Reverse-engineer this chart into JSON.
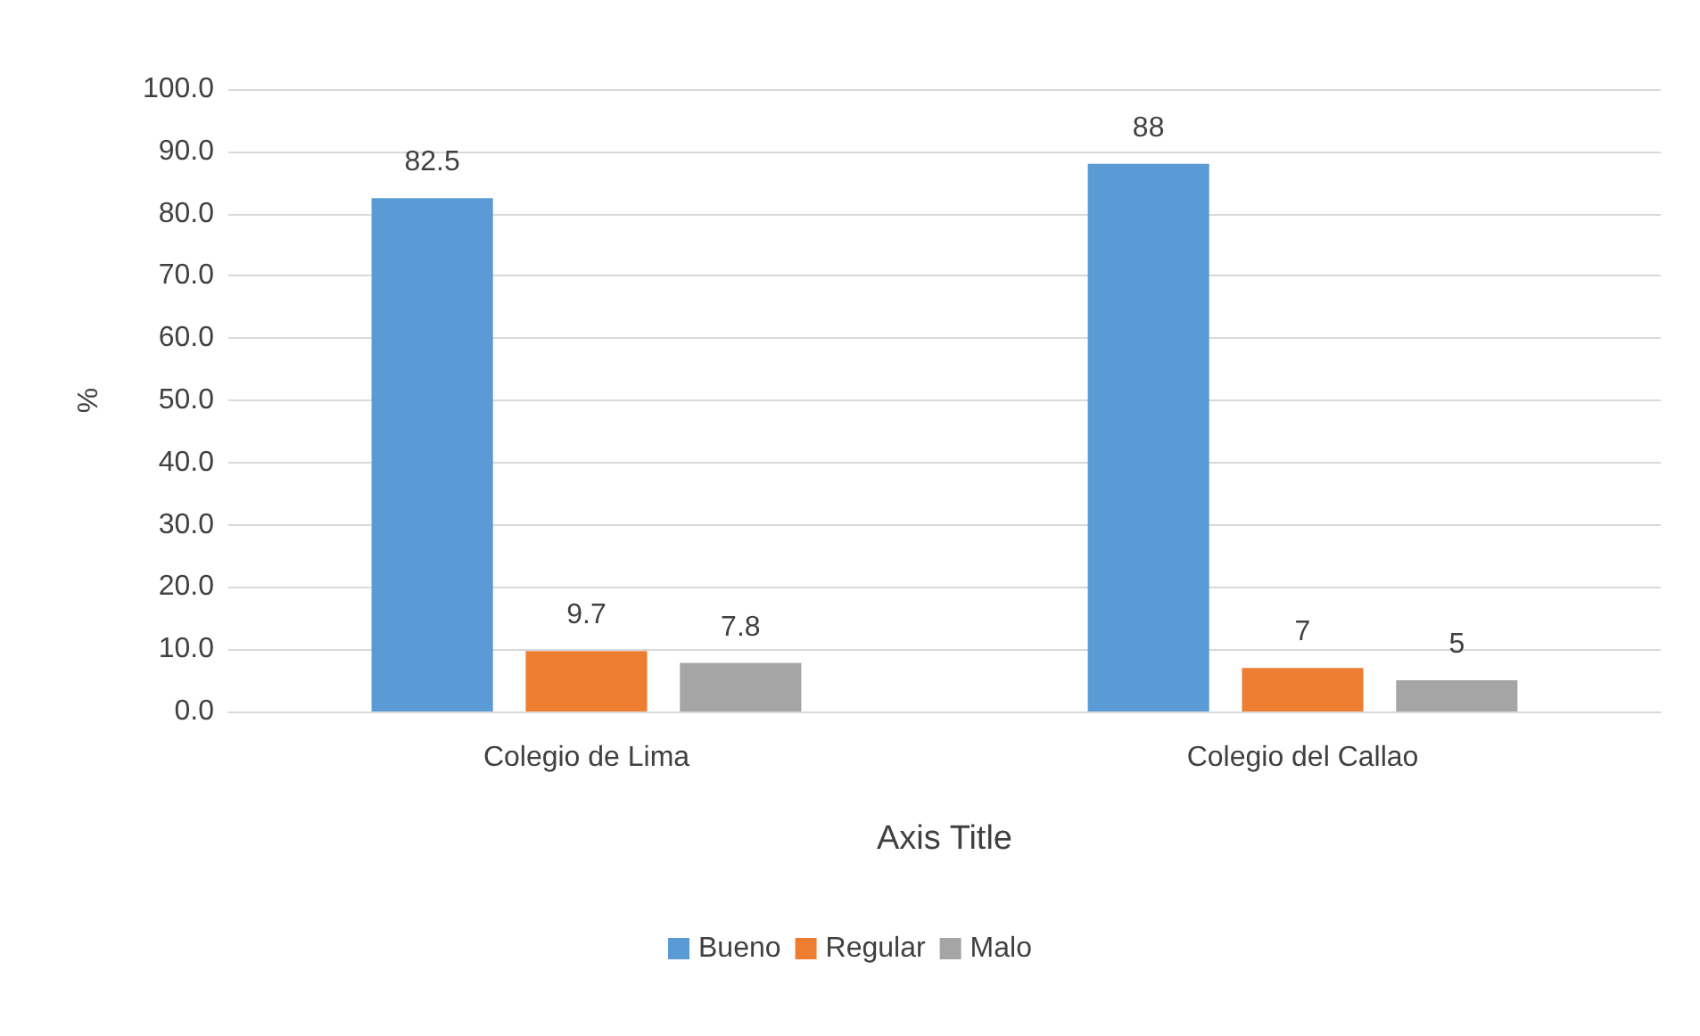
{
  "chart_data": {
    "type": "bar",
    "xlabel": "Axis Title",
    "ylabel": "%",
    "categories": [
      "Colegio de Lima",
      "Colegio del Callao"
    ],
    "series": [
      {
        "name": "Bueno",
        "color": "#5b9bd5",
        "values": [
          82.5,
          88
        ]
      },
      {
        "name": "Regular",
        "color": "#ed7d31",
        "values": [
          9.7,
          7
        ]
      },
      {
        "name": "Malo",
        "color": "#a5a5a5",
        "values": [
          7.8,
          5
        ]
      }
    ],
    "ylim": [
      0,
      100
    ],
    "yticks": [
      {
        "value": 0,
        "label": "0.0"
      },
      {
        "value": 10,
        "label": "10.0"
      },
      {
        "value": 20,
        "label": "20.0"
      },
      {
        "value": 30,
        "label": "30.0"
      },
      {
        "value": 40,
        "label": "40.0"
      },
      {
        "value": 50,
        "label": "50.0"
      },
      {
        "value": 60,
        "label": "60.0"
      },
      {
        "value": 70,
        "label": "70.0"
      },
      {
        "value": 80,
        "label": "80.0"
      },
      {
        "value": 90,
        "label": "90.0"
      },
      {
        "value": 100,
        "label": "100.0"
      }
    ],
    "grid": "y",
    "legend": "bottom",
    "data_labels": true
  }
}
